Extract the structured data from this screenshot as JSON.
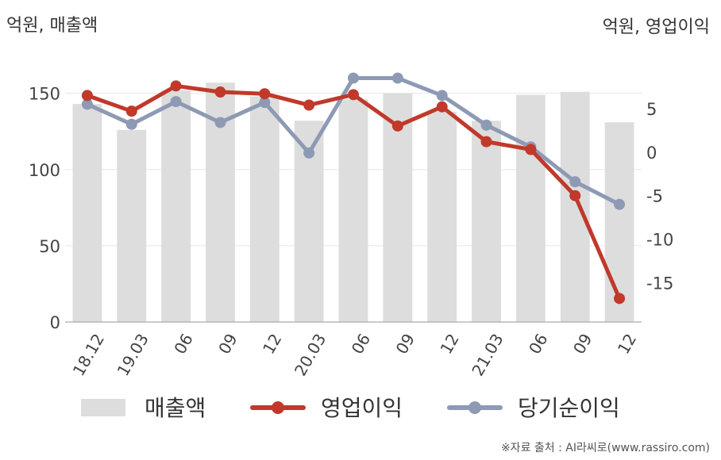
{
  "chart_data": {
    "type": "bar",
    "left_axis_unit": "억원, 매출액",
    "right_axis_unit": "억원, 영업이익",
    "categories": [
      "18.12",
      "19.03",
      "06",
      "09",
      "12",
      "20.03",
      "06",
      "09",
      "12",
      "21.03",
      "06",
      "09",
      "12"
    ],
    "ylim_left": [
      0,
      180
    ],
    "yticks_left": [
      0,
      50,
      100,
      150
    ],
    "ylim_right": [
      -19.5,
      12
    ],
    "yticks_right": [
      -15,
      -10,
      -5,
      0,
      5
    ],
    "grid": true,
    "legend_position": "bottom",
    "series": [
      {
        "name": "매출액",
        "kind": "bar",
        "axis": "left",
        "color": "#dddddd",
        "values": [
          143,
          126,
          152,
          157,
          148,
          132,
          146,
          150,
          138,
          132,
          149,
          151,
          131
        ]
      },
      {
        "name": "영업이익",
        "kind": "line",
        "axis": "right",
        "color": "#c0392b",
        "values": [
          6.5,
          4.7,
          7.6,
          6.9,
          6.7,
          5.4,
          6.6,
          3.0,
          5.2,
          1.2,
          0.3,
          -5.0,
          -16.8
        ]
      },
      {
        "name": "당기순이익",
        "kind": "line",
        "axis": "right",
        "color": "#8e9ab4",
        "values": [
          5.5,
          3.2,
          5.8,
          3.4,
          5.7,
          -0.1,
          8.5,
          8.5,
          6.5,
          3.1,
          0.6,
          -3.4,
          -6.0
        ]
      }
    ]
  },
  "source": "※자료 출처 : AI라씨로(www.rassiro.com)"
}
